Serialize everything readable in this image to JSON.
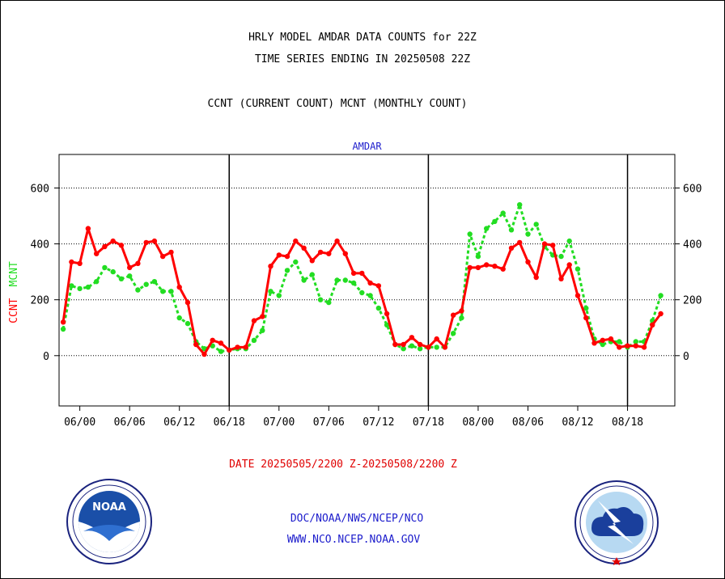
{
  "header": {
    "title_line1": "HRLY MODEL AMDAR DATA COUNTS for 22Z",
    "title_line2": "TIME SERIES ENDING IN 20250508 22Z",
    "subtitle": "CCNT (CURRENT COUNT) MCNT (MONTHLY COUNT)"
  },
  "footer": {
    "date_range": "DATE 20250505/2200 Z-20250508/2200 Z",
    "org_line1": "DOC/NOAA/NWS/NCEP/NCO",
    "org_line2": "WWW.NCO.NCEP.NOAA.GOV"
  },
  "logos": {
    "left": "noaa-logo",
    "right": "national-weather-service-logo"
  },
  "chart_data": {
    "type": "line",
    "title": "AMDAR",
    "ylabel_ccnt": "CCNT",
    "ylabel_mcnt": "MCNT",
    "ylim": [
      -180,
      720
    ],
    "yticks": [
      0,
      200,
      400,
      600
    ],
    "xlim": [
      -2.5,
      71.7
    ],
    "xticks": [
      {
        "x": 0,
        "label": "06/00"
      },
      {
        "x": 6,
        "label": "06/06"
      },
      {
        "x": 12,
        "label": "06/12"
      },
      {
        "x": 18,
        "label": "06/18"
      },
      {
        "x": 24,
        "label": "07/00"
      },
      {
        "x": 30,
        "label": "07/06"
      },
      {
        "x": 36,
        "label": "07/12"
      },
      {
        "x": 42,
        "label": "07/18"
      },
      {
        "x": 48,
        "label": "08/00"
      },
      {
        "x": 54,
        "label": "08/06"
      },
      {
        "x": 60,
        "label": "08/12"
      },
      {
        "x": 66,
        "label": "08/18"
      }
    ],
    "day_boundaries": [
      18,
      42,
      66
    ],
    "grid": "horizontal dotted",
    "x_start_hour": -2,
    "series": [
      {
        "name": "CCNT",
        "color": "#ff0000",
        "style": "solid",
        "values": [
          120,
          335,
          330,
          455,
          365,
          390,
          410,
          395,
          315,
          330,
          405,
          410,
          355,
          370,
          245,
          190,
          40,
          5,
          55,
          45,
          20,
          30,
          30,
          125,
          140,
          320,
          360,
          355,
          410,
          385,
          340,
          370,
          365,
          410,
          365,
          295,
          295,
          260,
          250,
          150,
          40,
          40,
          65,
          40,
          30,
          60,
          30,
          145,
          160,
          315,
          315,
          325,
          320,
          310,
          385,
          405,
          335,
          280,
          400,
          395,
          275,
          325,
          215,
          135,
          45,
          55,
          60,
          30,
          35,
          35,
          30,
          110,
          150
        ]
      },
      {
        "name": "MCNT",
        "color": "#22dd22",
        "style": "dotted",
        "values": [
          95,
          250,
          240,
          245,
          265,
          315,
          300,
          275,
          285,
          235,
          255,
          265,
          230,
          230,
          135,
          115,
          50,
          25,
          35,
          15,
          20,
          25,
          25,
          55,
          90,
          230,
          215,
          305,
          335,
          270,
          290,
          200,
          190,
          270,
          270,
          260,
          225,
          215,
          170,
          110,
          40,
          25,
          35,
          25,
          30,
          30,
          30,
          80,
          135,
          435,
          355,
          455,
          480,
          510,
          450,
          540,
          435,
          470,
          390,
          360,
          355,
          410,
          310,
          170,
          60,
          40,
          50,
          50,
          30,
          50,
          50,
          125,
          215
        ]
      }
    ]
  }
}
